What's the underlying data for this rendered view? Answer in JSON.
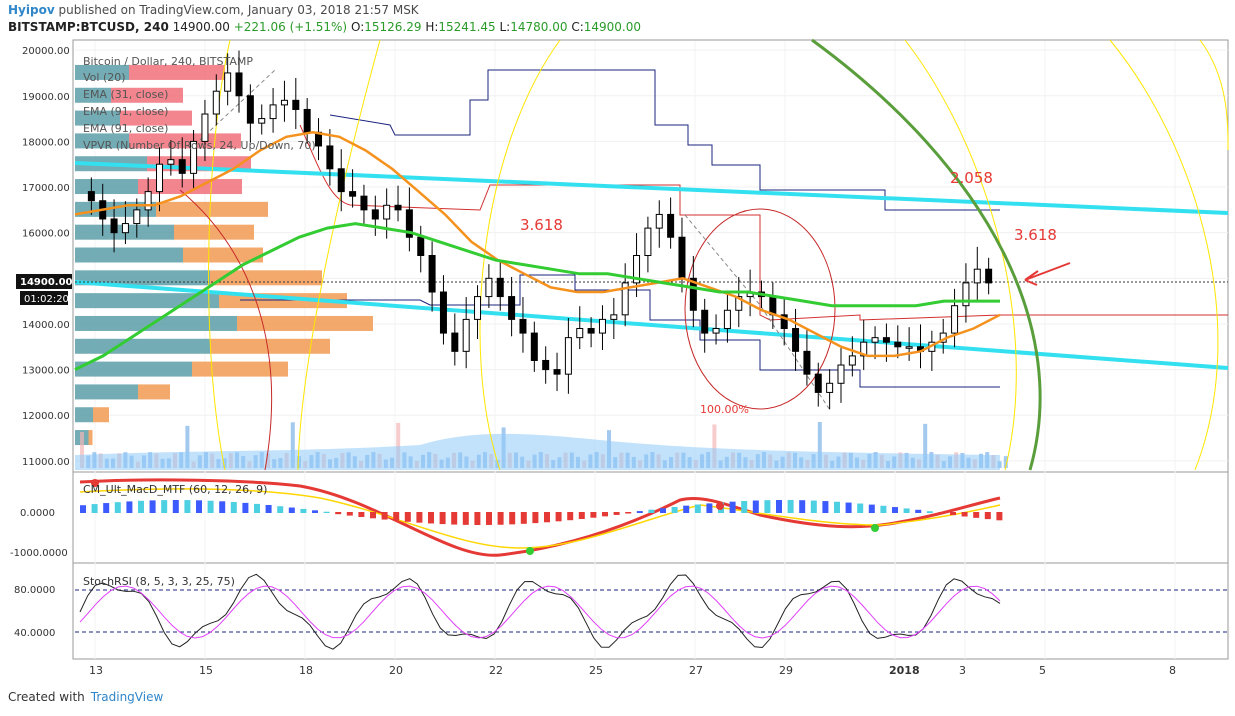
{
  "header": {
    "author": "Hyipov",
    "published": "published on TradingView.com, January 03, 2018 21:57 MSK",
    "symbol": "BITSTAMP:BTCUSD, 240",
    "last": "14900.00",
    "change": "+221.06 (+1.51%)",
    "o_label": "O:",
    "o": "15126.29",
    "h_label": "H:",
    "h": "15241.45",
    "l_label": "L:",
    "l": "14780.00",
    "c_label": "C:",
    "c": "14900.00"
  },
  "legend": {
    "title": "Bitcoin / Dollar, 240, BITSTAMP",
    "vol": "Vol (20)",
    "ema1": "EMA (31, close)",
    "ema2": "EMA (91, close)",
    "ema3": "EMA (91, close)",
    "vpvr": "VPVR (Number Of Rows, 24, Up/Down, 70)"
  },
  "annotations": {
    "fib_a": "3.618",
    "fib_b": "2.058",
    "fib_c": "3.618",
    "fib_d": "100.00%",
    "price_tag": "14900.00",
    "time_tag": "01:02:20"
  },
  "macd": {
    "title": "CM_Ult_MacD_MTF (60, 12, 26, 9)",
    "ticks": [
      "0.0000",
      "-1000.0000"
    ]
  },
  "stoch": {
    "title": "StochRSI (8, 5, 3, 3, 25, 75)",
    "ticks": [
      "80.0000",
      "40.0000"
    ]
  },
  "colors": {
    "bull": "#ffffff",
    "bear": "#000000",
    "ema_orange": "#f5921e",
    "ema_green": "#33cc33",
    "trend_cyan": "#33e0f0",
    "arc_yellow": "#ffe600",
    "arc_green": "#5a9e3c",
    "fib_red": "#e53935",
    "channel_blue": "#1a237e",
    "vol_blue": "#90caf9"
  },
  "footer": {
    "created": "Created with",
    "brand": "TradingView"
  },
  "chart_data": {
    "type": "candlestick",
    "title": "Bitcoin / Dollar, 240, BITSTAMP",
    "ylim": [
      10800,
      20200
    ],
    "y_ticks": [
      "20000.00",
      "19000.00",
      "18000.00",
      "17000.00",
      "16000.00",
      "15000.00",
      "14000.00",
      "13000.00",
      "12000.00",
      "11000.00"
    ],
    "x_ticks": [
      "13",
      "15",
      "18",
      "20",
      "22",
      "25",
      "27",
      "29",
      "2018",
      "3",
      "5",
      "8"
    ],
    "x_tick_pos": [
      0.02,
      0.13,
      0.23,
      0.32,
      0.42,
      0.52,
      0.62,
      0.71,
      0.82,
      0.89,
      0.97,
      1.1
    ],
    "close_path": [
      16900,
      16700,
      16300,
      16000,
      16200,
      16500,
      16900,
      17500,
      17600,
      17300,
      18000,
      18600,
      19100,
      19500,
      19000,
      18400,
      18500,
      18800,
      18900,
      18700,
      18200,
      17900,
      17400,
      16900,
      16800,
      16500,
      16300,
      16600,
      16500,
      15900,
      15500,
      14700,
      13800,
      13400,
      14100,
      14600,
      15000,
      14600,
      14100,
      13800,
      13200,
      13000,
      12900,
      13700,
      13900,
      13800,
      14100,
      14200,
      14900,
      15500,
      16100,
      16400,
      15900,
      15000,
      14300,
      13800,
      13900,
      14300,
      14600,
      14700,
      14600,
      14200,
      13900,
      13400,
      12900,
      12500,
      12700,
      13100,
      13300,
      13600,
      13700,
      13600,
      13500,
      13500,
      13400,
      13600,
      13800,
      14400,
      14900,
      15200,
      14900
    ],
    "ema31_path": [
      16400,
      16500,
      16600,
      16600,
      16800,
      17100,
      17400,
      17800,
      18100,
      18200,
      18100,
      17800,
      17400,
      16900,
      16400,
      15800,
      15400,
      15100,
      14800,
      14700,
      14700,
      14800,
      14900,
      15000,
      14800,
      14600,
      14300,
      14100,
      13800,
      13500,
      13300,
      13300,
      13400,
      13700,
      13900,
      14200
    ],
    "ema91_path": [
      13000,
      13300,
      13700,
      14100,
      14500,
      14900,
      15300,
      15600,
      15900,
      16100,
      16200,
      16100,
      16000,
      15800,
      15600,
      15400,
      15300,
      15200,
      15100,
      15100,
      15000,
      14900,
      14800,
      14700,
      14700,
      14600,
      14500,
      14400,
      14400,
      14400,
      14400,
      14500,
      14500,
      14500
    ],
    "volume_note": "volume histogram at bottom"
  }
}
